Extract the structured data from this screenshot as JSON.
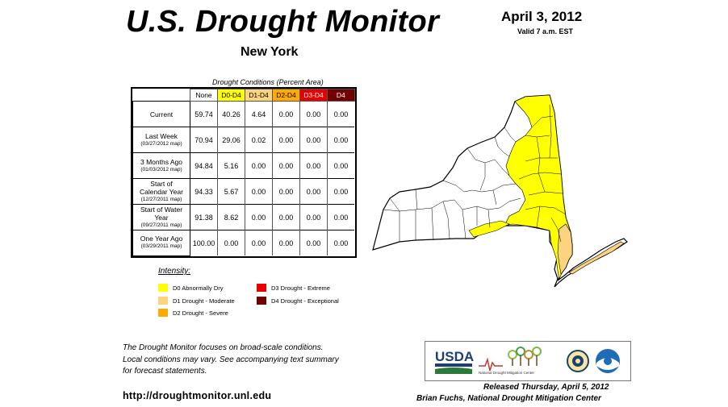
{
  "header": {
    "title": "U.S. Drought Monitor",
    "state": "New York",
    "date": "April 3, 2012",
    "valid": "Valid 7 a.m. EST"
  },
  "table": {
    "caption": "Drought Conditions (Percent Area)",
    "columns": [
      {
        "label": "None",
        "color": "#ffffff",
        "text_color": "#000000"
      },
      {
        "label": "D0-D4",
        "color": "#ffff00",
        "text_color": "#000000"
      },
      {
        "label": "D1-D4",
        "color": "#fcd37f",
        "text_color": "#000000"
      },
      {
        "label": "D2-D4",
        "color": "#ffaa00",
        "text_color": "#000000"
      },
      {
        "label": "D3-D4",
        "color": "#e60000",
        "text_color": "#ffffff"
      },
      {
        "label": "D4",
        "color": "#730000",
        "text_color": "#ffffff"
      }
    ],
    "rows": [
      {
        "label": "Current",
        "sub": "",
        "values": [
          "59.74",
          "40.26",
          "4.64",
          "0.00",
          "0.00",
          "0.00"
        ]
      },
      {
        "label": "Last Week",
        "sub": "(03/27/2012 map)",
        "values": [
          "70.94",
          "29.06",
          "0.02",
          "0.00",
          "0.00",
          "0.00"
        ]
      },
      {
        "label": "3 Months Ago",
        "sub": "(01/03/2012 map)",
        "values": [
          "94.84",
          "5.16",
          "0.00",
          "0.00",
          "0.00",
          "0.00"
        ]
      },
      {
        "label": "Start of Calendar Year",
        "sub": "(12/27/2011 map)",
        "values": [
          "94.33",
          "5.67",
          "0.00",
          "0.00",
          "0.00",
          "0.00"
        ]
      },
      {
        "label": "Start of Water Year",
        "sub": "(09/27/2011 map)",
        "values": [
          "91.38",
          "8.62",
          "0.00",
          "0.00",
          "0.00",
          "0.00"
        ]
      },
      {
        "label": "One Year Ago",
        "sub": "(03/29/2011 map)",
        "values": [
          "100.00",
          "0.00",
          "0.00",
          "0.00",
          "0.00",
          "0.00"
        ]
      }
    ]
  },
  "legend": {
    "title": "Intensity:",
    "items": [
      {
        "label": "D0 Abnormally Dry",
        "color": "#ffff00"
      },
      {
        "label": "D1 Drought - Moderate",
        "color": "#fcd37f"
      },
      {
        "label": "D2 Drought - Severe",
        "color": "#ffaa00"
      },
      {
        "label": "D3 Drought - Extreme",
        "color": "#e60000"
      },
      {
        "label": "D4 Drought - Exceptional",
        "color": "#730000"
      }
    ]
  },
  "note": {
    "line1": "The Drought Monitor focuses on broad-scale conditions.",
    "line2": "Local conditions may vary. See accompanying text summary",
    "line3": "for forecast statements."
  },
  "url": "http://droughtmonitor.unl.edu",
  "logos": {
    "usda": "USDA",
    "ndmc": "National Drought Mitigation Center"
  },
  "footer": {
    "released": "Released Thursday, April 5, 2012",
    "author": "Brian Fuchs, National Drought Mitigation Center"
  },
  "map": {
    "region": "New York",
    "d0_color": "#ffff00",
    "d1_color": "#fcd37f",
    "none_color": "#ffffff",
    "border_color": "#000000"
  }
}
